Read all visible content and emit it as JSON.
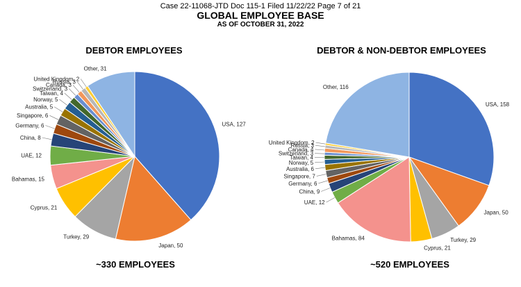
{
  "document": {
    "case_line": "Case 22-11068-JTD    Doc 115-1    Filed 11/22/22    Page 7 of 21",
    "title": "GLOBAL EMPLOYEE BASE",
    "subtitle": "AS OF OCTOBER 31, 2022"
  },
  "chart_data": [
    {
      "type": "pie",
      "title": "DEBTOR EMPLOYEES",
      "total_label": "~330 EMPLOYEES",
      "slices": [
        {
          "label": "USA",
          "value": 127,
          "color": "#4472C4"
        },
        {
          "label": "Japan",
          "value": 50,
          "color": "#ED7D31"
        },
        {
          "label": "Turkey",
          "value": 29,
          "color": "#A5A5A5"
        },
        {
          "label": "Cyprus",
          "value": 21,
          "color": "#FFC000"
        },
        {
          "label": "Bahamas",
          "value": 15,
          "color": "#F4928D"
        },
        {
          "label": "UAE",
          "value": 12,
          "color": "#70AD47"
        },
        {
          "label": "China",
          "value": 8,
          "color": "#264478"
        },
        {
          "label": "Germany",
          "value": 6,
          "color": "#9E480E"
        },
        {
          "label": "Singapore",
          "value": 6,
          "color": "#636363"
        },
        {
          "label": "Australia",
          "value": 5,
          "color": "#997300"
        },
        {
          "label": "Norway",
          "value": 5,
          "color": "#255E91"
        },
        {
          "label": "Taiwan",
          "value": 4,
          "color": "#43682B"
        },
        {
          "label": "Switzerland",
          "value": 3,
          "color": "#698ED0"
        },
        {
          "label": "Canada",
          "value": 3,
          "color": "#F1975A"
        },
        {
          "label": "Russia",
          "value": 3,
          "color": "#B7B7B7"
        },
        {
          "label": "United Kingdom",
          "value": 2,
          "color": "#FFCD33"
        },
        {
          "label": "Other",
          "value": 31,
          "color": "#8EB4E3"
        }
      ]
    },
    {
      "type": "pie",
      "title": "DEBTOR & NON-DEBTOR EMPLOYEES",
      "total_label": "~520 EMPLOYEES",
      "slices": [
        {
          "label": "USA",
          "value": 158,
          "color": "#4472C4"
        },
        {
          "label": "Japan",
          "value": 50,
          "color": "#ED7D31"
        },
        {
          "label": "Turkey",
          "value": 29,
          "color": "#A5A5A5"
        },
        {
          "label": "Cyprus",
          "value": 21,
          "color": "#FFC000"
        },
        {
          "label": "Bahamas",
          "value": 84,
          "color": "#F4928D"
        },
        {
          "label": "UAE",
          "value": 12,
          "color": "#70AD47"
        },
        {
          "label": "China",
          "value": 9,
          "color": "#264478"
        },
        {
          "label": "Germany",
          "value": 6,
          "color": "#9E480E"
        },
        {
          "label": "Singapore",
          "value": 7,
          "color": "#636363"
        },
        {
          "label": "Australia",
          "value": 6,
          "color": "#997300"
        },
        {
          "label": "Norway",
          "value": 5,
          "color": "#255E91"
        },
        {
          "label": "Taiwan",
          "value": 4,
          "color": "#43682B"
        },
        {
          "label": "Switzerland",
          "value": 3,
          "color": "#698ED0"
        },
        {
          "label": "Canada",
          "value": 4,
          "color": "#F1975A"
        },
        {
          "label": "Russia",
          "value": 3,
          "color": "#B7B7B7"
        },
        {
          "label": "United Kingdom",
          "value": 2,
          "color": "#FFCD33"
        },
        {
          "label": "Other",
          "value": 116,
          "color": "#8EB4E3"
        }
      ]
    }
  ]
}
